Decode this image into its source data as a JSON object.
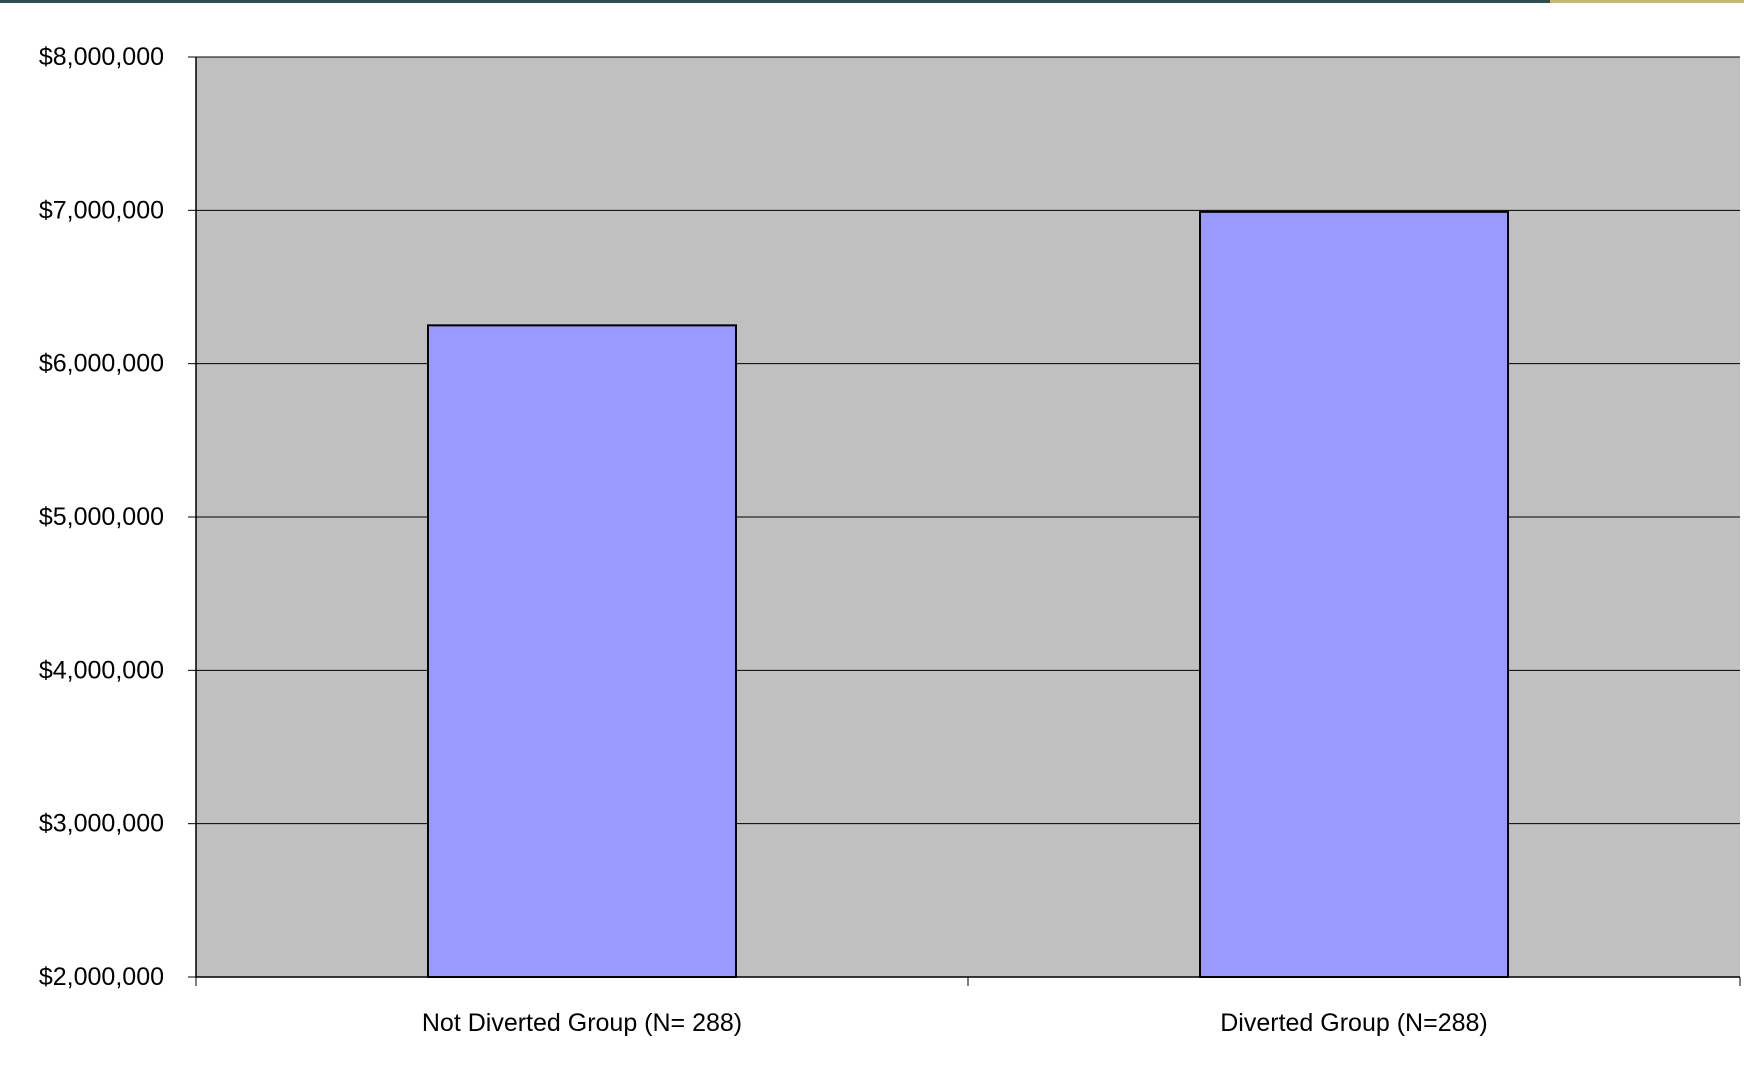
{
  "chart_data": {
    "type": "bar",
    "categories": [
      "Not Diverted Group (N= 288)",
      "Diverted Group (N=288)"
    ],
    "values": [
      6250000,
      6990000
    ],
    "ylim": [
      2000000,
      8000000
    ],
    "yticks": [
      2000000,
      3000000,
      4000000,
      5000000,
      6000000,
      7000000,
      8000000
    ],
    "ytick_labels": [
      "$2,000,000",
      "$3,000,000",
      "$4,000,000",
      "$5,000,000",
      "$6,000,000",
      "$7,000,000",
      "$8,000,000"
    ],
    "title": "",
    "xlabel": "",
    "ylabel": "",
    "grid": true,
    "legend": "none",
    "colors": {
      "plot_background": "#c0c0c0",
      "bar_fill": "#9999ff",
      "bar_stroke": "#000000",
      "gridline": "#000000"
    }
  }
}
